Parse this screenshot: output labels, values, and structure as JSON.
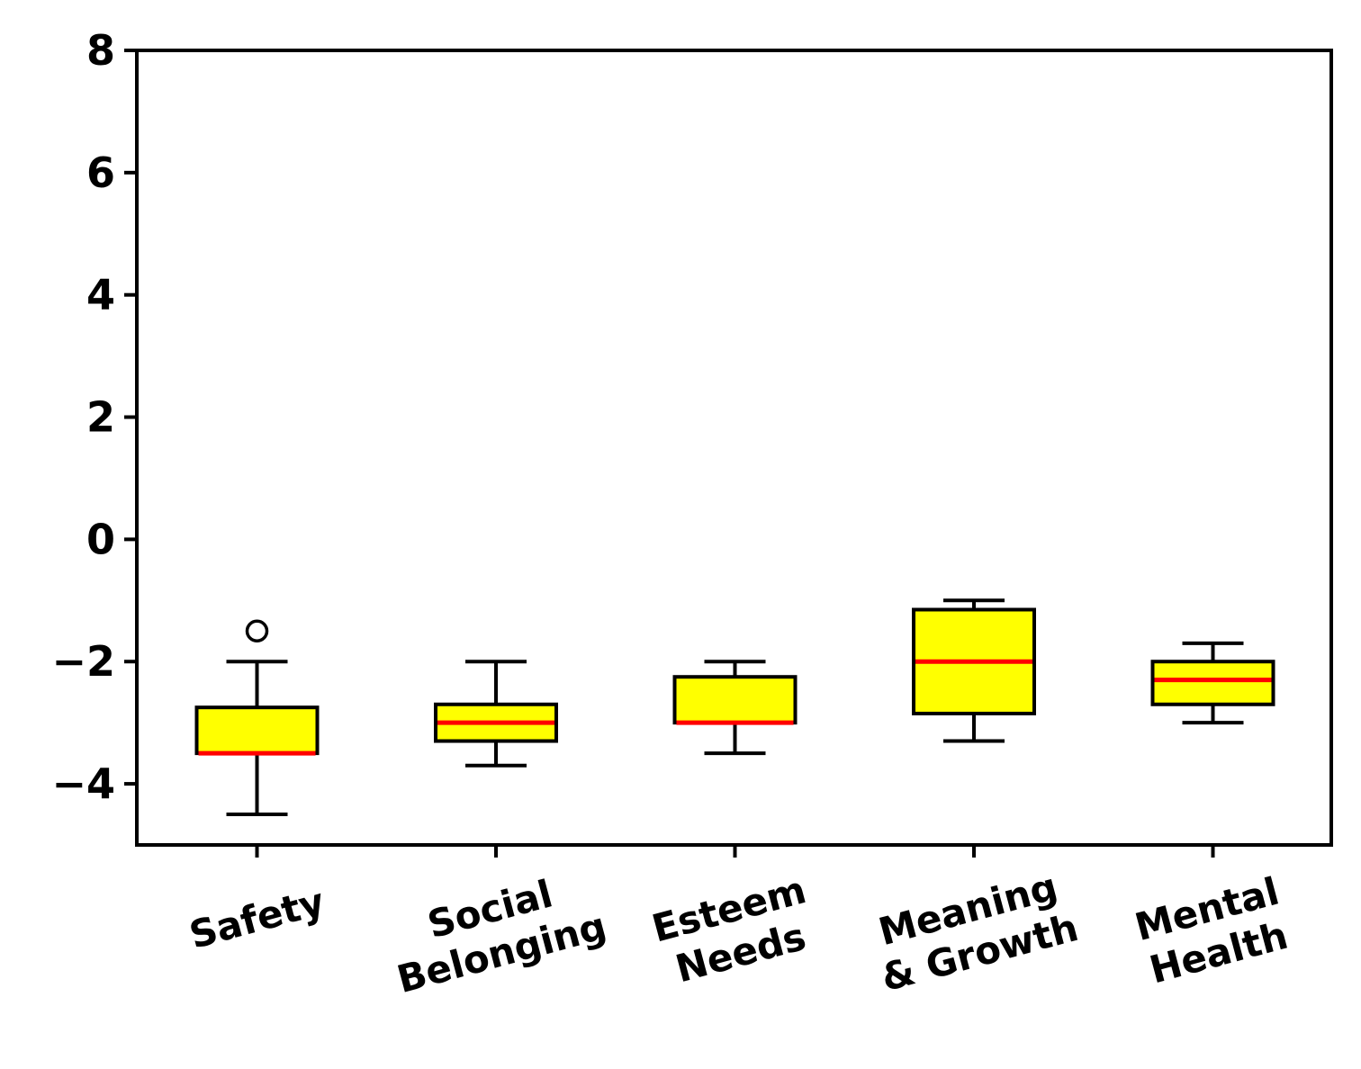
{
  "chart_data": {
    "type": "box",
    "title": "",
    "xlabel": "",
    "ylabel": "",
    "ylim": [
      -5,
      8
    ],
    "yticks": [
      -4,
      -2,
      0,
      2,
      4,
      6,
      8
    ],
    "ytick_labels": [
      "−4",
      "−2",
      "0",
      "2",
      "4",
      "6",
      "8"
    ],
    "grid": false,
    "box_fill_color": "#ffff00",
    "median_color": "#ff0000",
    "categories": [
      [
        "Safety"
      ],
      [
        "Social",
        "Belonging"
      ],
      [
        "Esteem",
        "Needs"
      ],
      [
        "Meaning",
        "& Growth"
      ],
      [
        "Mental",
        "Health"
      ]
    ],
    "boxes": [
      {
        "whisker_low": -4.5,
        "q1": -3.5,
        "median": -3.5,
        "q3": -2.75,
        "whisker_high": -2.0,
        "outliers": [
          -1.5
        ]
      },
      {
        "whisker_low": -3.7,
        "q1": -3.3,
        "median": -3.0,
        "q3": -2.7,
        "whisker_high": -2.0,
        "outliers": []
      },
      {
        "whisker_low": -3.5,
        "q1": -3.0,
        "median": -3.0,
        "q3": -2.25,
        "whisker_high": -2.0,
        "outliers": []
      },
      {
        "whisker_low": -3.3,
        "q1": -2.85,
        "median": -2.0,
        "q3": -1.15,
        "whisker_high": -1.0,
        "outliers": []
      },
      {
        "whisker_low": -3.0,
        "q1": -2.7,
        "median": -2.3,
        "q3": -2.0,
        "whisker_high": -1.7,
        "outliers": []
      }
    ]
  }
}
